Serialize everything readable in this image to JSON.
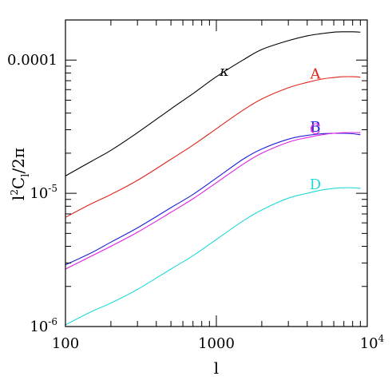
{
  "chart_data": {
    "type": "line",
    "title": "",
    "xlabel": "l",
    "ylabel": "l²C_l / 2π",
    "xscale": "log",
    "yscale": "log",
    "xlim": [
      100,
      10000
    ],
    "ylim": [
      1e-06,
      0.0002
    ],
    "grid": false,
    "legend": "labels placed next to curves on the right",
    "x_tick_labels": [
      {
        "value": 100,
        "text": "100"
      },
      {
        "value": 1000,
        "text": "1000"
      },
      {
        "value": 10000,
        "base": "10",
        "exp": "4"
      }
    ],
    "y_tick_labels": [
      {
        "value": 1e-06,
        "base": "10",
        "exp": "-6"
      },
      {
        "value": 1e-05,
        "base": "10",
        "exp": "-5"
      },
      {
        "value": 0.0001,
        "text": "0.0001"
      }
    ],
    "x": [
      100,
      150,
      200,
      300,
      500,
      700,
      1000,
      1500,
      2000,
      3000,
      4000,
      5000,
      6000,
      7000,
      8000,
      9000
    ],
    "series": [
      {
        "name": "κ",
        "color": "#000000",
        "values": [
          1.35e-05,
          1.75e-05,
          2.1e-05,
          2.85e-05,
          4.3e-05,
          5.6e-05,
          7.5e-05,
          0.0001,
          0.00012,
          0.00014,
          0.000152,
          0.000158,
          0.000162,
          0.000163,
          0.000163,
          0.000162
        ]
      },
      {
        "name": "A",
        "color": "#e0241d",
        "values": [
          6.6e-06,
          8.4e-06,
          9.8e-06,
          1.25e-05,
          1.8e-05,
          2.3e-05,
          3.05e-05,
          4.2e-05,
          5.1e-05,
          6.2e-05,
          6.8e-05,
          7.2e-05,
          7.4e-05,
          7.5e-05,
          7.5e-05,
          7.45e-05
        ]
      },
      {
        "name": "B",
        "color": "#2020d8",
        "values": [
          2.9e-06,
          3.6e-06,
          4.3e-06,
          5.5e-06,
          7.8e-06,
          9.8e-06,
          1.3e-05,
          1.8e-05,
          2.15e-05,
          2.55e-05,
          2.72e-05,
          2.8e-05,
          2.82e-05,
          2.82e-05,
          2.8e-05,
          2.75e-05
        ]
      },
      {
        "name": "C",
        "color": "#e020e0",
        "values": [
          2.7e-06,
          3.4e-06,
          4e-06,
          5.1e-06,
          7.2e-06,
          9.1e-06,
          1.2e-05,
          1.65e-05,
          2e-05,
          2.42e-05,
          2.62e-05,
          2.75e-05,
          2.82e-05,
          2.85e-05,
          2.86e-05,
          2.85e-05
        ]
      },
      {
        "name": "D",
        "color": "#20dada",
        "values": [
          1.03e-06,
          1.3e-06,
          1.5e-06,
          1.9e-06,
          2.7e-06,
          3.4e-06,
          4.5e-06,
          6.2e-06,
          7.5e-06,
          9.2e-06,
          1e-05,
          1.06e-05,
          1.09e-05,
          1.1e-05,
          1.1e-05,
          1.09e-05
        ]
      }
    ]
  }
}
